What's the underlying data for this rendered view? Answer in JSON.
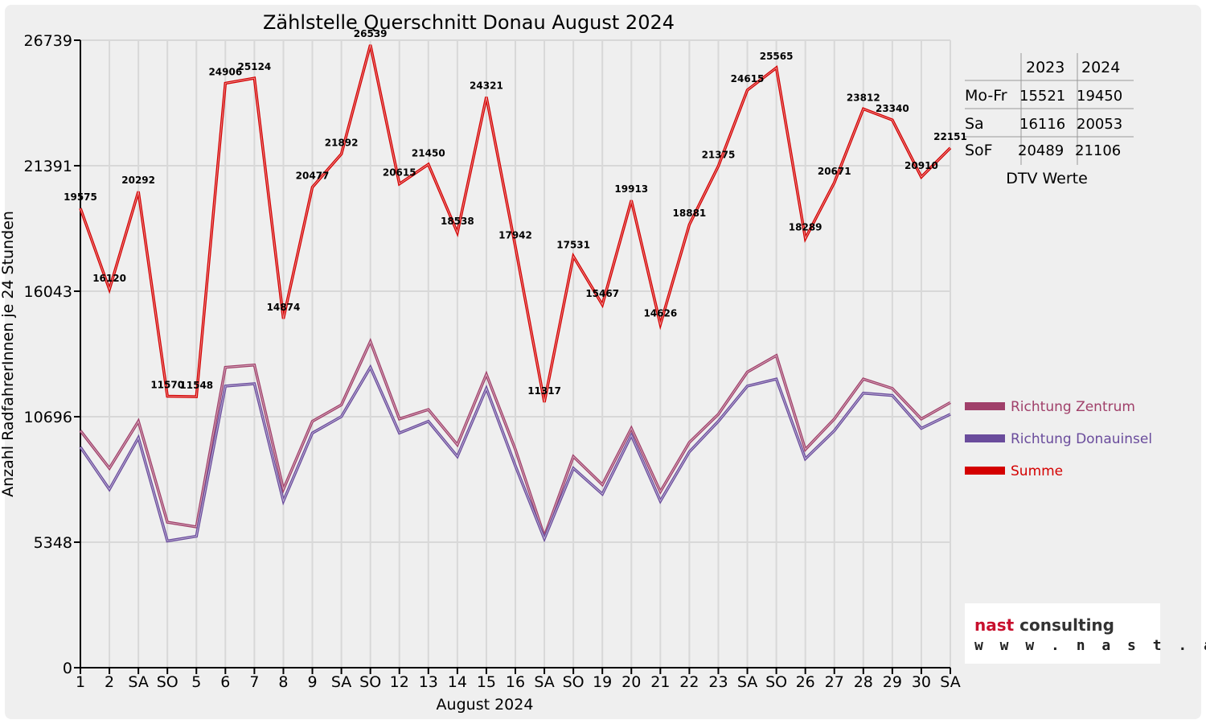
{
  "chart_data": {
    "type": "line",
    "title": "Zählstelle Querschnitt Donau August 2024",
    "xlabel": "August 2024",
    "ylabel": "Anzahl RadfahrerInnen je 24 Stunden",
    "ylim": [
      0,
      26739
    ],
    "yticks": [
      "26739",
      "21391",
      "16043",
      "10696",
      "5348",
      "0"
    ],
    "ytick_values": [
      26739,
      21391,
      16043,
      10696,
      5348,
      0
    ],
    "categories": [
      "1",
      "2",
      "SA",
      "SO",
      "5",
      "6",
      "7",
      "8",
      "9",
      "SA",
      "SO",
      "12",
      "13",
      "14",
      "15",
      "16",
      "SA",
      "SO",
      "19",
      "20",
      "21",
      "22",
      "23",
      "SA",
      "SO",
      "26",
      "27",
      "28",
      "29",
      "30",
      "SA"
    ],
    "highlighted_categories": [
      3,
      10,
      14,
      17,
      24
    ],
    "grid": true,
    "legend_position": "right",
    "series": [
      {
        "name": "Richtung Zentrum",
        "color": "#a0406a",
        "values": [
          10100,
          8500,
          10500,
          6200,
          6000,
          12800,
          12900,
          7600,
          10500,
          11200,
          13900,
          10600,
          11000,
          9500,
          12500,
          9300,
          5600,
          9000,
          7800,
          10200,
          7500,
          9600,
          10800,
          12600,
          13300,
          9300,
          10600,
          12300,
          11900,
          10600,
          11300
        ]
      },
      {
        "name": "Richtung Donauinsel",
        "color": "#6a4c9c",
        "values": [
          9400,
          7600,
          9800,
          5400,
          5600,
          12000,
          12100,
          7100,
          10000,
          10700,
          12800,
          10000,
          10500,
          9000,
          11900,
          8600,
          5500,
          8500,
          7400,
          9900,
          7100,
          9200,
          10500,
          12000,
          12300,
          8900,
          10100,
          11700,
          11600,
          10200,
          10800
        ]
      },
      {
        "name": "Summe",
        "color": "#d40000",
        "values": [
          19575,
          16120,
          20292,
          11570,
          11548,
          24906,
          25124,
          14874,
          20477,
          21892,
          26539,
          20615,
          21450,
          18538,
          24321,
          17942,
          11317,
          17531,
          15467,
          19913,
          14626,
          18881,
          21375,
          24615,
          25565,
          18289,
          20671,
          23812,
          23340,
          20910,
          22151
        ],
        "labels": [
          "19575",
          "16120",
          "20292",
          "11570",
          "11548",
          "24906",
          "25124",
          "14874",
          "20477",
          "21892",
          "26539",
          "20615",
          "21450",
          "18538",
          "24321",
          "17942",
          "11317",
          "17531",
          "15467",
          "19913",
          "14626",
          "18881",
          "21375",
          "24615",
          "25565",
          "18289",
          "20671",
          "23812",
          "23340",
          "20910",
          "22151"
        ]
      }
    ]
  },
  "dtv_table": {
    "headers": [
      "2023",
      "2024"
    ],
    "rows": [
      {
        "label": "Mo-Fr",
        "v2023": "15521",
        "v2024": "19450"
      },
      {
        "label": "Sa",
        "v2023": "16116",
        "v2024": "20053"
      },
      {
        "label": "SoF",
        "v2023": "20489",
        "v2024": "21106"
      }
    ],
    "caption": "DTV Werte"
  },
  "logo": {
    "brand": "nast consulting",
    "url": "w w w . n a s t . a t"
  },
  "colors": {
    "highlight": "#ff0000",
    "grid": "#d8d8d8",
    "background": "#efefef"
  }
}
